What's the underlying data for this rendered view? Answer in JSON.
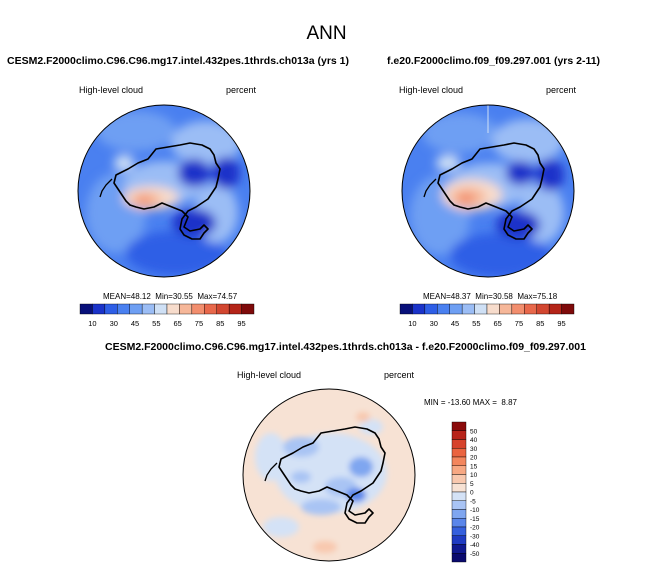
{
  "page": {
    "title": "ANN"
  },
  "colors": {
    "abs_scale": [
      "#08107a",
      "#1a33c9",
      "#2e5ee6",
      "#4a80f0",
      "#6e9ff3",
      "#9bbdf5",
      "#cfe0f5",
      "#f7dccc",
      "#f6b799",
      "#f28e6e",
      "#e8684b",
      "#d24630",
      "#b42418",
      "#7e0a0a"
    ],
    "diff_scale": [
      "#0a0a6e",
      "#10198f",
      "#1f3bc2",
      "#3560dd",
      "#5a86ea",
      "#7fa6f0",
      "#a9c4f4",
      "#d4e2f6",
      "#f7e2d4",
      "#f8c8ae",
      "#f7a883",
      "#f3865d",
      "#ea6440",
      "#d6432c",
      "#b8241a",
      "#8a0a0a"
    ]
  },
  "chart_data": [
    {
      "type": "heatmap",
      "projection": "polar-stereographic-south",
      "title": "CESM2.F2000climo.C96.C96.mg17.intel.432pes.1thrds.ch013a (yrs 1)",
      "left_label": "High-level cloud",
      "right_label": "percent",
      "stats": {
        "MEAN": 48.12,
        "Min": 30.55,
        "Max": 74.57
      },
      "stats_text": {
        "mean_label": "MEAN=",
        "mean": "48.12",
        "min_label": "Min=",
        "min": "30.55",
        "max_label": "Max=",
        "max": "74.57"
      },
      "colorbar_ticks": [
        "10",
        "30",
        "45",
        "55",
        "65",
        "75",
        "85",
        "95"
      ],
      "colorbar_levels": [
        10,
        20,
        30,
        40,
        45,
        50,
        55,
        60,
        65,
        70,
        75,
        80,
        85,
        90,
        95
      ]
    },
    {
      "type": "heatmap",
      "projection": "polar-stereographic-south",
      "title": "f.e20.F2000climo.f09_f09.297.001 (yrs 2-11)",
      "left_label": "High-level cloud",
      "right_label": "percent",
      "stats": {
        "MEAN": 48.37,
        "Min": 30.58,
        "Max": 75.18
      },
      "stats_text": {
        "mean_label": "MEAN=",
        "mean": "48.37",
        "min_label": "Min=",
        "min": "30.58",
        "max_label": "Max=",
        "max": "75.18"
      },
      "colorbar_ticks": [
        "10",
        "30",
        "45",
        "55",
        "65",
        "75",
        "85",
        "95"
      ],
      "colorbar_levels": [
        10,
        20,
        30,
        40,
        45,
        50,
        55,
        60,
        65,
        70,
        75,
        80,
        85,
        90,
        95
      ]
    },
    {
      "type": "heatmap",
      "projection": "polar-stereographic-south",
      "title": "CESM2.F2000climo.C96.C96.mg17.intel.432pes.1thrds.ch013a - f.e20.F2000climo.f09_f09.297.001",
      "left_label": "High-level cloud",
      "right_label": "percent",
      "stats": {
        "MIN": -13.6,
        "MAX": 8.87
      },
      "stats_text": {
        "min_label": "MIN =",
        "min": "-13.60",
        "max_label": "MAX =",
        "max": "8.87"
      },
      "colorbar_ticks": [
        "50",
        "40",
        "30",
        "20",
        "15",
        "10",
        "5",
        "0",
        "-5",
        "-10",
        "-15",
        "-20",
        "-30",
        "-40",
        "-50"
      ],
      "colorbar_levels": [
        50,
        40,
        30,
        20,
        15,
        10,
        5,
        0,
        -5,
        -10,
        -15,
        -20,
        -30,
        -40,
        -50
      ]
    }
  ]
}
